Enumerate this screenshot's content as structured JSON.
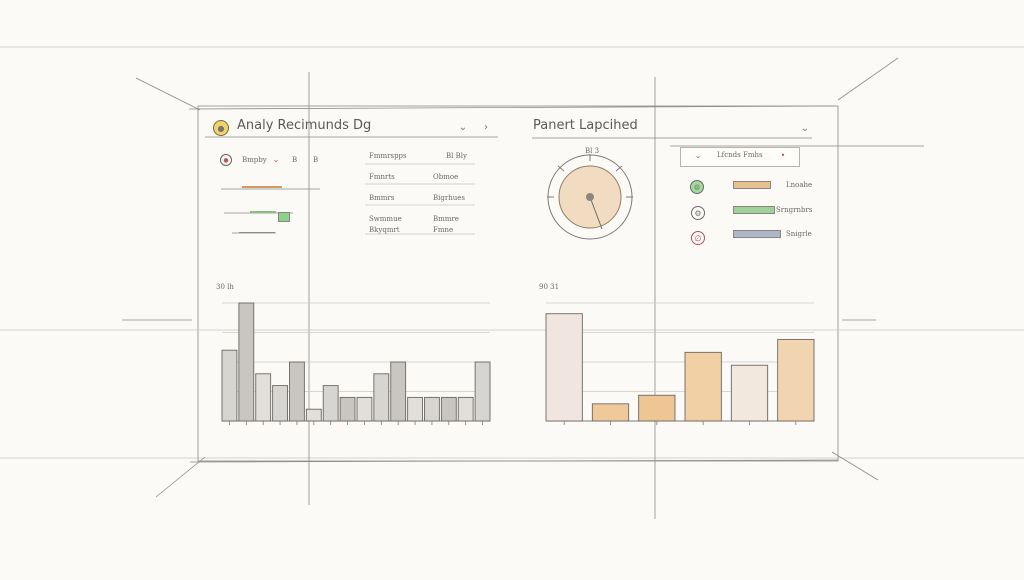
{
  "left_panel": {
    "title": "Analy Recimunds Dg",
    "controls": {
      "filter_label": "Bmpby",
      "toggle_a": "B",
      "toggle_b": "B"
    },
    "table": {
      "headers": [
        "Fmmrspps",
        "Bl Bly"
      ],
      "rows": [
        [
          "Fmnrts",
          "Obmoe"
        ],
        [
          "Bmmrs",
          "Bigrhues"
        ],
        [
          "Swmmue Bkyqmrt",
          "Bmmre Fmne"
        ]
      ]
    },
    "chart": {
      "title_label": "30 lh"
    }
  },
  "right_panel": {
    "title": "Panert Lapcihed",
    "gauge_label": "Bl 3",
    "legend_header": "Lfcnds  Fmhs",
    "legend_items": [
      {
        "label": "Lnoahe",
        "color": "#e9c38f",
        "icon": "leaf-icon"
      },
      {
        "label": "Srngrnbrs",
        "color": "#9fd29b",
        "icon": "gear-icon"
      },
      {
        "label": "Snigrle",
        "color": "#aeb7c8",
        "icon": "warning-icon"
      }
    ],
    "chart": {
      "title_label": "90 31"
    }
  },
  "chart_data": [
    {
      "type": "bar",
      "title": "30 lh",
      "categories": [
        "",
        "",
        "",
        "",
        "",
        "",
        "",
        "",
        "",
        "",
        "",
        "",
        "",
        "",
        "",
        ""
      ],
      "values": [
        6,
        10,
        4,
        3,
        5,
        1,
        3,
        2,
        2,
        4,
        5,
        2,
        2,
        2,
        2,
        5
      ],
      "ylim": [
        0,
        10
      ],
      "xlabel": "",
      "ylabel": "",
      "grid": true
    },
    {
      "type": "bar",
      "title": "90 31",
      "categories": [
        "",
        "",
        "",
        "",
        "",
        ""
      ],
      "values": [
        5,
        0.8,
        1.2,
        3.2,
        2.6,
        3.8
      ],
      "ylim": [
        0,
        5.5
      ],
      "xlabel": "",
      "ylabel": "",
      "grid": true
    }
  ]
}
